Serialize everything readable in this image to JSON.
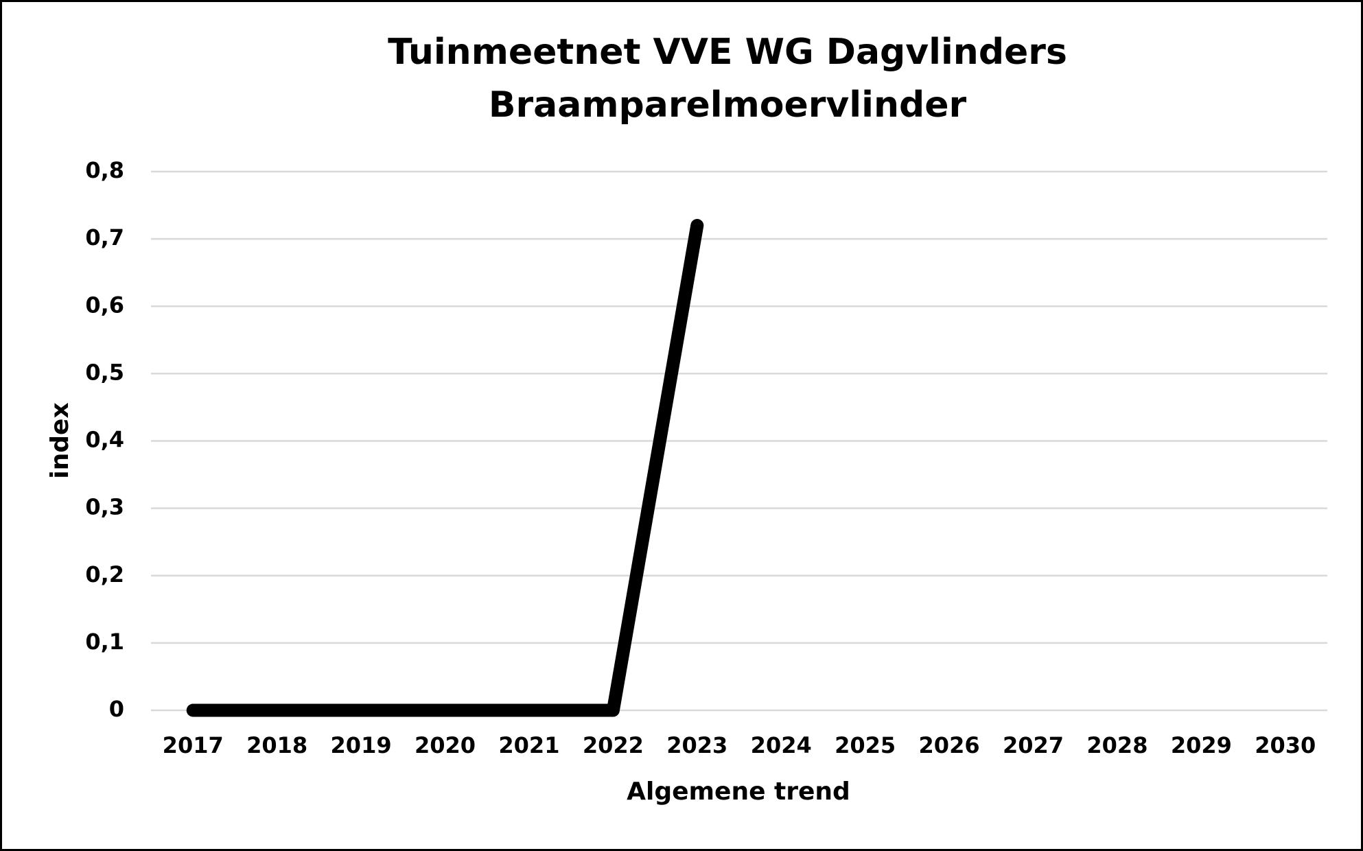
{
  "chart_data": {
    "type": "line",
    "title": [
      "Tuinmeetnet VVE WG Dagvlinders",
      "Braamparelmoervlinder"
    ],
    "x_label": "Algemene trend",
    "y_label": "index",
    "categories": [
      "2017",
      "2018",
      "2019",
      "2020",
      "2021",
      "2022",
      "2023",
      "2024",
      "2025",
      "2026",
      "2027",
      "2028",
      "2029",
      "2030"
    ],
    "series": [
      {
        "color": "#000000",
        "values": [
          0,
          0,
          0,
          0,
          0,
          0,
          0.72,
          null,
          null,
          null,
          null,
          null,
          null,
          null
        ]
      }
    ],
    "ylim": [
      0,
      0.8
    ],
    "yticks": [
      0,
      {
        "value": 0.1,
        "label": "0,1"
      },
      {
        "value": 0.2,
        "label": "0,2"
      },
      {
        "value": 0.3,
        "label": "0,3"
      },
      {
        "value": 0.4,
        "label": "0,4"
      },
      {
        "value": 0.5,
        "label": "0,5"
      },
      {
        "value": 0.6,
        "label": "0,6"
      },
      {
        "value": 0.7,
        "label": "0,7"
      },
      {
        "value": 0.8,
        "label": "0,8"
      }
    ],
    "grid": true
  }
}
